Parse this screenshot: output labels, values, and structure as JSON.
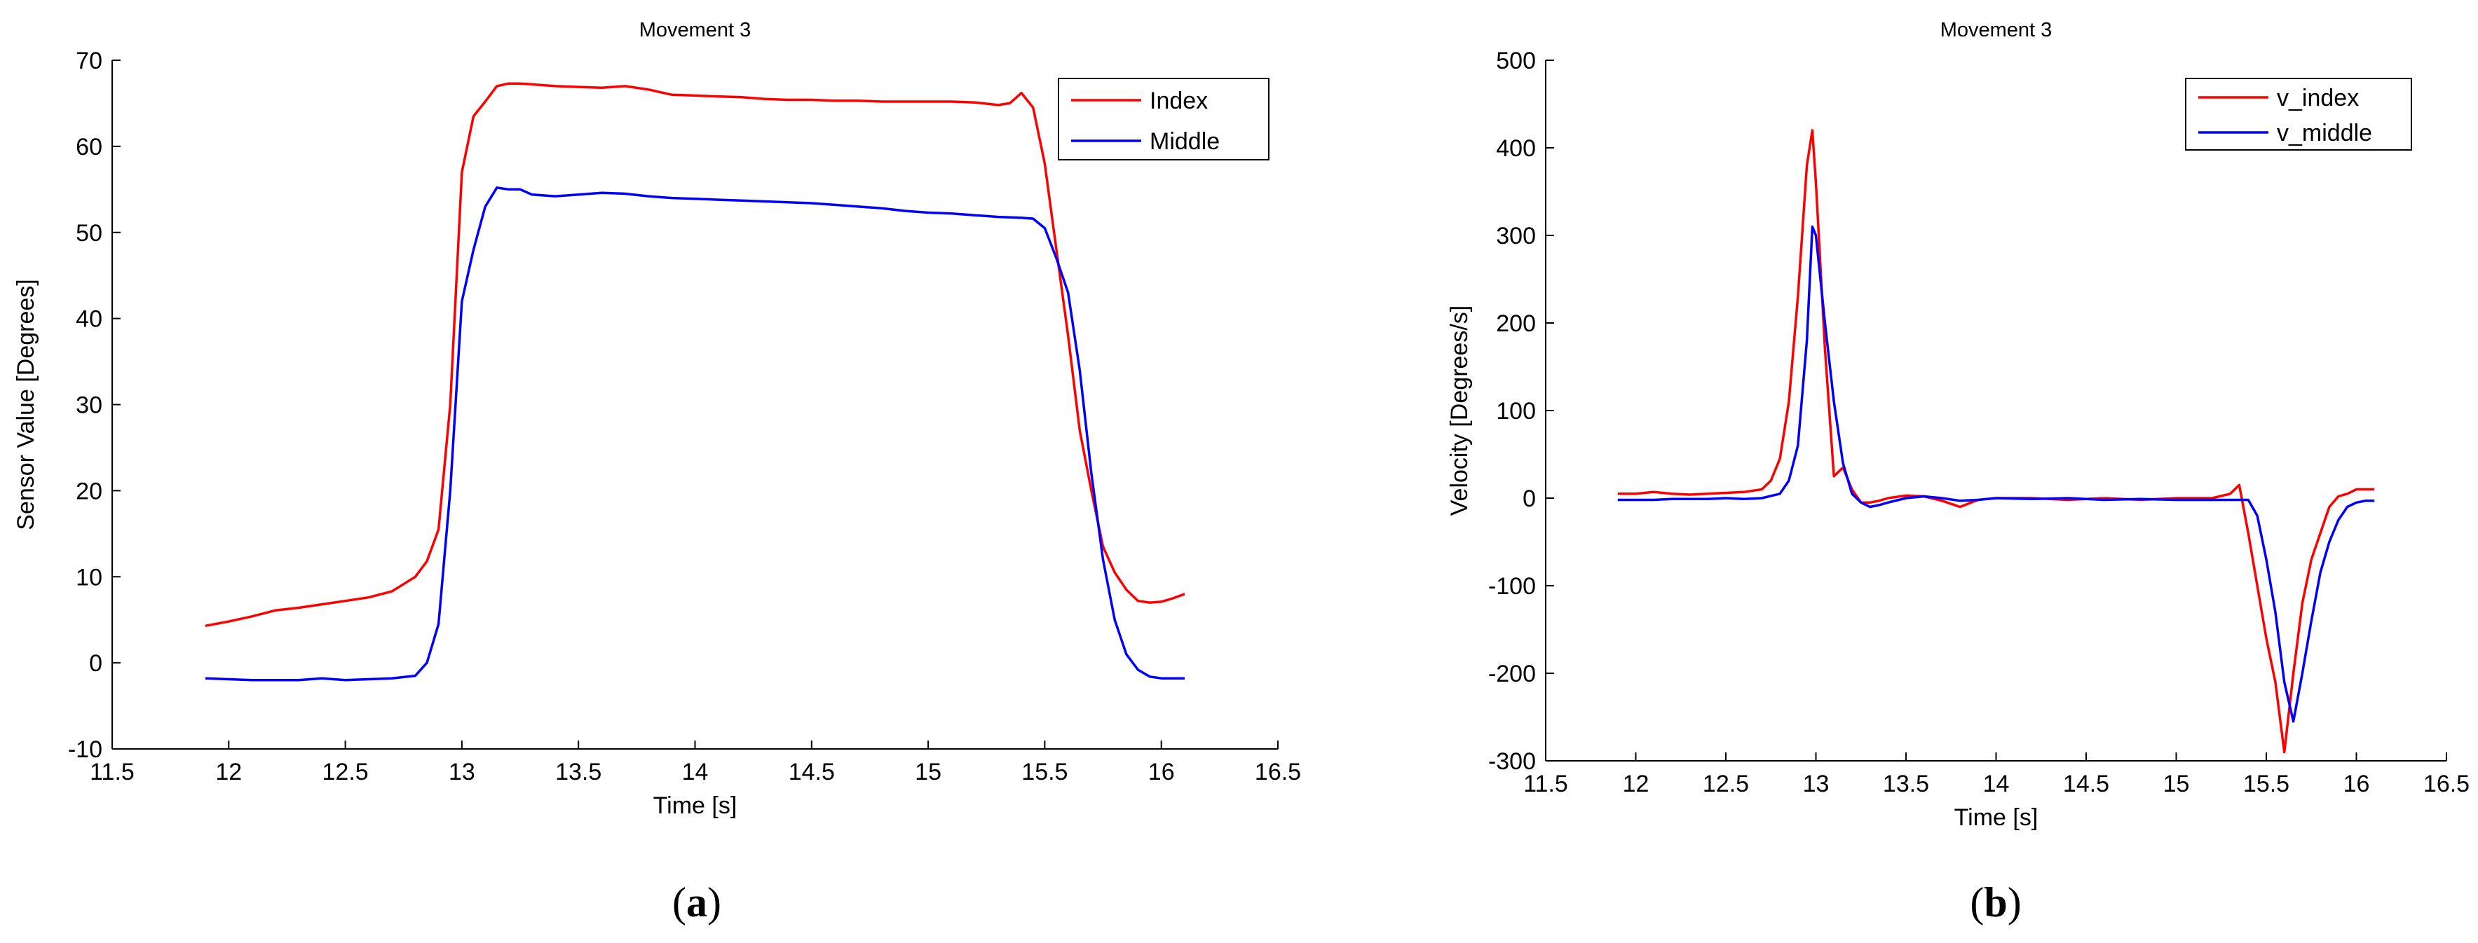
{
  "chart_data": [
    {
      "type": "line",
      "title": "Movement 3",
      "xlabel": "Time [s]",
      "ylabel": "Sensor Value [Degrees]",
      "xlim": [
        11.5,
        16.5
      ],
      "ylim": [
        -10,
        70
      ],
      "xticks": [
        "11.5",
        "12",
        "12.5",
        "13",
        "13.5",
        "14",
        "14.5",
        "15",
        "15.5",
        "16",
        "16.5"
      ],
      "yticks": [
        "-10",
        "0",
        "10",
        "20",
        "30",
        "40",
        "50",
        "60",
        "70"
      ],
      "legend_position": "top-right",
      "grid": false,
      "caption": {
        "open": "(",
        "letter": "a",
        "close": ")"
      },
      "series": [
        {
          "name": "Index",
          "color": "#ff0000",
          "x": [
            11.9,
            12.0,
            12.1,
            12.2,
            12.3,
            12.4,
            12.5,
            12.6,
            12.7,
            12.8,
            12.85,
            12.9,
            12.95,
            13.0,
            13.05,
            13.1,
            13.15,
            13.2,
            13.25,
            13.3,
            13.4,
            13.5,
            13.6,
            13.7,
            13.8,
            13.9,
            14.0,
            14.1,
            14.2,
            14.3,
            14.4,
            14.5,
            14.6,
            14.7,
            14.8,
            14.9,
            15.0,
            15.1,
            15.2,
            15.3,
            15.35,
            15.4,
            15.45,
            15.5,
            15.55,
            15.6,
            15.65,
            15.7,
            15.75,
            15.8,
            15.85,
            15.9,
            15.95,
            16.0,
            16.05,
            16.1
          ],
          "values": [
            4.3,
            4.8,
            5.4,
            6.1,
            6.4,
            6.8,
            7.2,
            7.6,
            8.3,
            10.0,
            11.8,
            15.5,
            30.0,
            57.0,
            63.5,
            65.2,
            67.0,
            67.3,
            67.3,
            67.2,
            67.0,
            66.9,
            66.8,
            67.0,
            66.6,
            66.0,
            65.9,
            65.8,
            65.7,
            65.5,
            65.4,
            65.4,
            65.3,
            65.3,
            65.2,
            65.2,
            65.2,
            65.2,
            65.1,
            64.8,
            65.0,
            66.2,
            64.5,
            58.0,
            48.0,
            38.0,
            27.0,
            20.0,
            13.5,
            10.5,
            8.5,
            7.2,
            7.0,
            7.1,
            7.5,
            8.0
          ]
        },
        {
          "name": "Middle",
          "color": "#0000ff",
          "x": [
            11.9,
            12.0,
            12.1,
            12.2,
            12.3,
            12.4,
            12.5,
            12.6,
            12.7,
            12.8,
            12.85,
            12.9,
            12.95,
            13.0,
            13.05,
            13.1,
            13.15,
            13.2,
            13.25,
            13.3,
            13.4,
            13.5,
            13.6,
            13.7,
            13.8,
            13.9,
            14.0,
            14.1,
            14.2,
            14.3,
            14.4,
            14.5,
            14.6,
            14.7,
            14.8,
            14.9,
            15.0,
            15.1,
            15.2,
            15.3,
            15.4,
            15.45,
            15.5,
            15.55,
            15.6,
            15.65,
            15.7,
            15.75,
            15.8,
            15.85,
            15.9,
            15.95,
            16.0,
            16.05,
            16.1
          ],
          "values": [
            -1.8,
            -1.9,
            -2.0,
            -2.0,
            -2.0,
            -1.8,
            -2.0,
            -1.9,
            -1.8,
            -1.5,
            0.0,
            4.5,
            20.0,
            42.0,
            48.0,
            53.0,
            55.2,
            55.0,
            55.0,
            54.4,
            54.2,
            54.4,
            54.6,
            54.5,
            54.2,
            54.0,
            53.9,
            53.8,
            53.7,
            53.6,
            53.5,
            53.4,
            53.2,
            53.0,
            52.8,
            52.5,
            52.3,
            52.2,
            52.0,
            51.8,
            51.7,
            51.6,
            50.5,
            47.0,
            43.0,
            34.0,
            22.0,
            12.0,
            5.0,
            1.0,
            -0.8,
            -1.6,
            -1.8,
            -1.8,
            -1.8
          ]
        }
      ]
    },
    {
      "type": "line",
      "title": "Movement 3",
      "xlabel": "Time [s]",
      "ylabel": "Velocity [Degrees/s]",
      "xlim": [
        11.5,
        16.5
      ],
      "ylim": [
        -300,
        500
      ],
      "xticks": [
        "11.5",
        "12",
        "12.5",
        "13",
        "13.5",
        "14",
        "14.5",
        "15",
        "15.5",
        "16",
        "16.5"
      ],
      "yticks": [
        "-300",
        "-200",
        "-100",
        "0",
        "100",
        "200",
        "300",
        "400",
        "500"
      ],
      "legend_position": "top-right",
      "grid": false,
      "caption": {
        "open": "(",
        "letter": "b",
        "close": ")"
      },
      "series": [
        {
          "name": "v_index",
          "color": "#ff0000",
          "x": [
            11.9,
            12.0,
            12.1,
            12.2,
            12.3,
            12.4,
            12.5,
            12.6,
            12.7,
            12.75,
            12.8,
            12.85,
            12.9,
            12.95,
            12.98,
            13.0,
            13.05,
            13.1,
            13.15,
            13.2,
            13.25,
            13.3,
            13.35,
            13.4,
            13.5,
            13.6,
            13.7,
            13.8,
            13.9,
            14.0,
            14.2,
            14.4,
            14.6,
            14.8,
            15.0,
            15.2,
            15.3,
            15.35,
            15.4,
            15.45,
            15.5,
            15.55,
            15.6,
            15.65,
            15.7,
            15.75,
            15.8,
            15.85,
            15.9,
            15.95,
            16.0,
            16.05,
            16.1
          ],
          "values": [
            5,
            5,
            7,
            5,
            4,
            5,
            6,
            7,
            10,
            20,
            45,
            110,
            230,
            380,
            420,
            360,
            170,
            25,
            35,
            10,
            -5,
            -5,
            -3,
            0,
            3,
            2,
            -3,
            -10,
            -2,
            0,
            0,
            -2,
            0,
            -2,
            0,
            0,
            5,
            15,
            -40,
            -100,
            -160,
            -210,
            -290,
            -200,
            -120,
            -70,
            -40,
            -10,
            2,
            5,
            10,
            10,
            10
          ]
        },
        {
          "name": "v_middle",
          "color": "#0000ff",
          "x": [
            11.9,
            12.0,
            12.1,
            12.2,
            12.3,
            12.4,
            12.5,
            12.6,
            12.7,
            12.8,
            12.85,
            12.9,
            12.95,
            12.98,
            13.0,
            13.05,
            13.1,
            13.15,
            13.2,
            13.25,
            13.3,
            13.35,
            13.4,
            13.5,
            13.6,
            13.7,
            13.8,
            13.9,
            14.0,
            14.2,
            14.4,
            14.6,
            14.8,
            15.0,
            15.2,
            15.3,
            15.4,
            15.45,
            15.5,
            15.55,
            15.6,
            15.65,
            15.7,
            15.75,
            15.8,
            15.85,
            15.9,
            15.95,
            16.0,
            16.05,
            16.1
          ],
          "values": [
            -2,
            -2,
            -2,
            -1,
            -1,
            -1,
            0,
            -1,
            0,
            5,
            20,
            60,
            180,
            310,
            300,
            200,
            110,
            40,
            5,
            -5,
            -10,
            -8,
            -5,
            0,
            2,
            0,
            -3,
            -2,
            0,
            -1,
            0,
            -2,
            -1,
            -2,
            -2,
            -2,
            -2,
            -20,
            -70,
            -130,
            -210,
            -255,
            -200,
            -140,
            -85,
            -50,
            -25,
            -10,
            -5,
            -3,
            -3
          ]
        }
      ]
    }
  ]
}
